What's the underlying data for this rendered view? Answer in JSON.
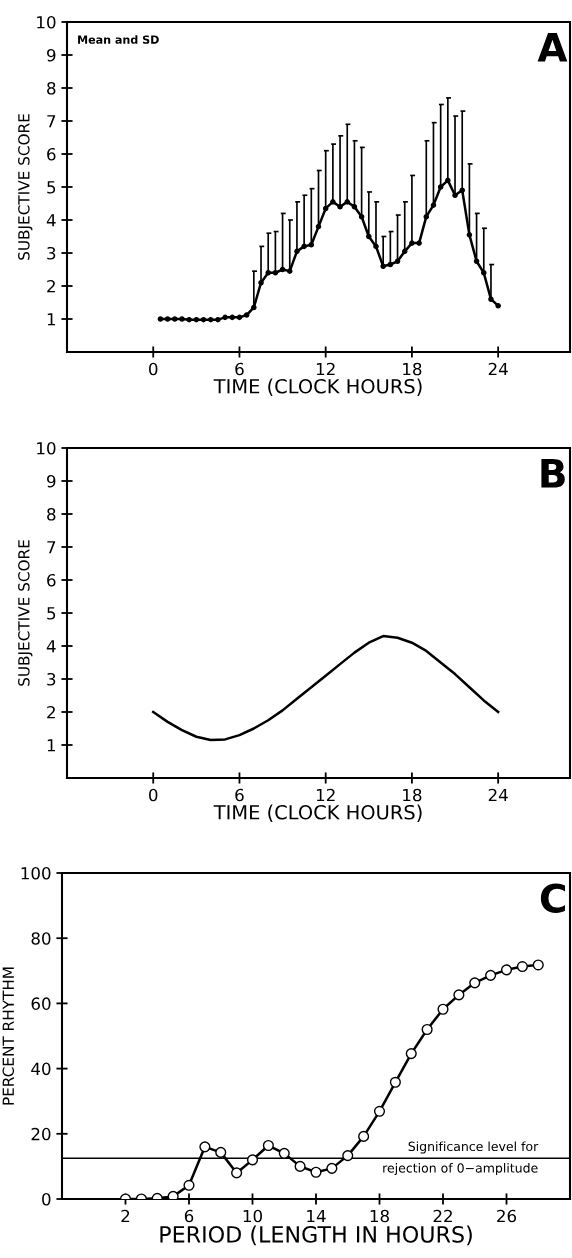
{
  "chart_data": [
    {
      "type": "line",
      "xlabel": "TIME (CLOCK HOURS)",
      "ylabel": "SUBJECTIVE SCORE",
      "annotations": [
        "Mean and SD",
        "A"
      ],
      "marker": "circle",
      "line_style": "solid",
      "grid": false,
      "color": "#000000",
      "x": [
        0.5,
        1,
        1.5,
        2,
        2.5,
        3,
        3.5,
        4,
        4.5,
        5,
        5.5,
        6,
        6.5,
        7,
        7.5,
        8,
        8.5,
        9,
        9.5,
        10,
        10.5,
        11,
        11.5,
        12,
        12.5,
        13,
        13.5,
        14,
        14.5,
        15,
        15.5,
        16,
        16.5,
        17,
        17.5,
        18,
        18.5,
        19,
        19.5,
        20,
        20.5,
        21,
        21.5,
        22,
        22.5,
        23,
        23.5,
        24
      ],
      "xticks": [
        0,
        6,
        12,
        18,
        24
      ],
      "yticks": [
        1,
        2,
        3,
        4,
        5,
        6,
        7,
        8,
        9,
        10
      ],
      "values": [
        1.0,
        1.0,
        1.0,
        1.0,
        0.98,
        0.98,
        0.98,
        0.98,
        0.98,
        1.05,
        1.05,
        1.05,
        1.12,
        1.35,
        2.1,
        2.4,
        2.4,
        2.5,
        2.45,
        3.05,
        3.2,
        3.25,
        3.8,
        4.35,
        4.55,
        4.4,
        4.55,
        4.4,
        4.1,
        3.5,
        3.2,
        2.6,
        2.65,
        2.75,
        3.05,
        3.3,
        3.3,
        4.1,
        4.45,
        5.0,
        5.2,
        4.75,
        4.9,
        3.55,
        2.75,
        2.4,
        1.6,
        1.4
      ],
      "errors": [
        null,
        null,
        null,
        null,
        null,
        null,
        null,
        null,
        null,
        null,
        null,
        null,
        null,
        [
          1.35,
          2.45
        ],
        [
          2.1,
          3.2
        ],
        [
          2.4,
          3.6
        ],
        [
          2.4,
          3.65
        ],
        [
          2.5,
          4.2
        ],
        [
          2.45,
          4.0
        ],
        [
          3.05,
          4.55
        ],
        [
          3.2,
          4.75
        ],
        [
          3.25,
          4.95
        ],
        [
          3.8,
          5.5
        ],
        [
          4.35,
          6.1
        ],
        [
          4.55,
          6.3
        ],
        [
          4.4,
          6.55
        ],
        [
          4.55,
          6.9
        ],
        [
          4.4,
          6.4
        ],
        [
          4.1,
          6.2
        ],
        [
          3.5,
          4.85
        ],
        [
          3.2,
          4.55
        ],
        [
          2.6,
          3.5
        ],
        [
          2.65,
          3.65
        ],
        [
          2.75,
          4.15
        ],
        [
          3.05,
          4.55
        ],
        [
          3.3,
          5.35
        ],
        null,
        [
          4.1,
          6.4
        ],
        [
          4.45,
          6.95
        ],
        [
          5.0,
          7.5
        ],
        [
          5.2,
          7.7
        ],
        [
          4.75,
          7.15
        ],
        [
          4.9,
          7.3
        ],
        [
          3.55,
          5.7
        ],
        [
          2.75,
          4.2
        ],
        [
          2.4,
          3.75
        ],
        [
          1.6,
          2.65
        ],
        null
      ],
      "xlim": [
        -6,
        29
      ],
      "ylim": [
        0,
        10
      ]
    },
    {
      "type": "line",
      "xlabel": "TIME (CLOCK HOURS)",
      "ylabel": "SUBJECTIVE SCORE",
      "annotations": [
        "B"
      ],
      "line_style": "solid",
      "grid": false,
      "color": "#000000",
      "x": [
        0,
        1,
        2,
        3,
        4,
        5,
        6,
        7,
        8,
        9,
        10,
        11,
        12,
        13,
        14,
        15,
        16,
        17,
        18,
        19,
        20,
        21,
        22,
        23,
        24
      ],
      "values": [
        2.0,
        1.7,
        1.45,
        1.25,
        1.15,
        1.17,
        1.3,
        1.5,
        1.75,
        2.05,
        2.4,
        2.75,
        3.1,
        3.45,
        3.8,
        4.1,
        4.3,
        4.25,
        4.1,
        3.85,
        3.5,
        3.15,
        2.75,
        2.35,
        2.0
      ],
      "xlim": [
        -6,
        29
      ],
      "xticks": [
        0,
        6,
        12,
        18,
        24
      ],
      "ylim": [
        0,
        10
      ],
      "yticks": [
        1,
        2,
        3,
        4,
        5,
        6,
        7,
        8,
        9,
        10
      ]
    },
    {
      "type": "line",
      "xlabel": "PERIOD (LENGTH IN HOURS)",
      "ylabel": "PERCENT RHYTHM",
      "annotations": [
        "C"
      ],
      "marker": "circle",
      "line_style": "solid",
      "grid": false,
      "color": "#000000",
      "x": [
        2,
        3,
        4,
        5,
        6,
        7,
        8,
        9,
        10,
        11,
        12,
        13,
        14,
        15,
        16,
        17,
        18,
        19,
        20,
        21,
        22,
        23,
        24,
        25,
        26,
        27,
        28
      ],
      "values": [
        0,
        0,
        0.2,
        0.8,
        4.2,
        16,
        14.3,
        8,
        12,
        16.4,
        14,
        10,
        8.2,
        9.4,
        13.3,
        19.2,
        26.9,
        35.8,
        44.6,
        52,
        58.2,
        62.6,
        66.3,
        68.6,
        70.3,
        71.3,
        71.8
      ],
      "ref_lines": [
        {
          "axis": "y",
          "value": 12.5,
          "label": "Significance level for\nrejection of 0−amplitude",
          "color": "#000000",
          "line_style": "solid"
        }
      ],
      "xlim": [
        -2,
        30
      ],
      "xticks": [
        2,
        6,
        10,
        14,
        18,
        22,
        26
      ],
      "ylim": [
        0,
        100
      ],
      "yticks": [
        0,
        20,
        40,
        60,
        80,
        100
      ]
    }
  ]
}
